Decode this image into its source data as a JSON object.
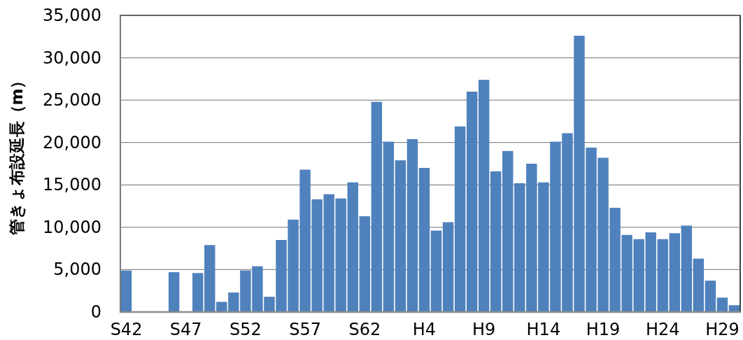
{
  "chart_data": {
    "type": "bar",
    "ylabel": "管きょ布設延長（m）",
    "categories": [
      "S42",
      null,
      null,
      null,
      null,
      "S47",
      null,
      null,
      null,
      null,
      "S52",
      null,
      null,
      null,
      null,
      "S57",
      null,
      null,
      null,
      null,
      "S62",
      null,
      null,
      null,
      null,
      "H4",
      null,
      null,
      null,
      null,
      "H9",
      null,
      null,
      null,
      null,
      "H14",
      null,
      null,
      null,
      null,
      "H19",
      null,
      null,
      null,
      null,
      "H24",
      null,
      null,
      null,
      null,
      "H29",
      null
    ],
    "values": [
      4900,
      0,
      0,
      0,
      4700,
      0,
      4600,
      7900,
      1200,
      2300,
      4900,
      5400,
      1800,
      8500,
      10900,
      16800,
      13300,
      13900,
      13400,
      15300,
      11300,
      24800,
      20100,
      17900,
      20400,
      17000,
      9600,
      10600,
      21900,
      26000,
      27400,
      16600,
      19000,
      15200,
      17500,
      15300,
      20100,
      21100,
      32600,
      19400,
      18200,
      12300,
      9100,
      8600,
      9400,
      8600,
      9300,
      10200,
      6300,
      3700,
      1700,
      800
    ],
    "color": "#4f81bd",
    "ylim": [
      0,
      35000
    ],
    "yticks": [
      0,
      {
        "value": 5000,
        "label": "5,000"
      },
      {
        "value": 10000,
        "label": "10,000"
      },
      {
        "value": 15000,
        "label": "15,000"
      },
      {
        "value": 20000,
        "label": "20,000"
      },
      {
        "value": 25000,
        "label": "25,000"
      },
      {
        "value": 30000,
        "label": "30,000"
      },
      {
        "value": 35000,
        "label": "35,000"
      }
    ],
    "grid": "y"
  }
}
